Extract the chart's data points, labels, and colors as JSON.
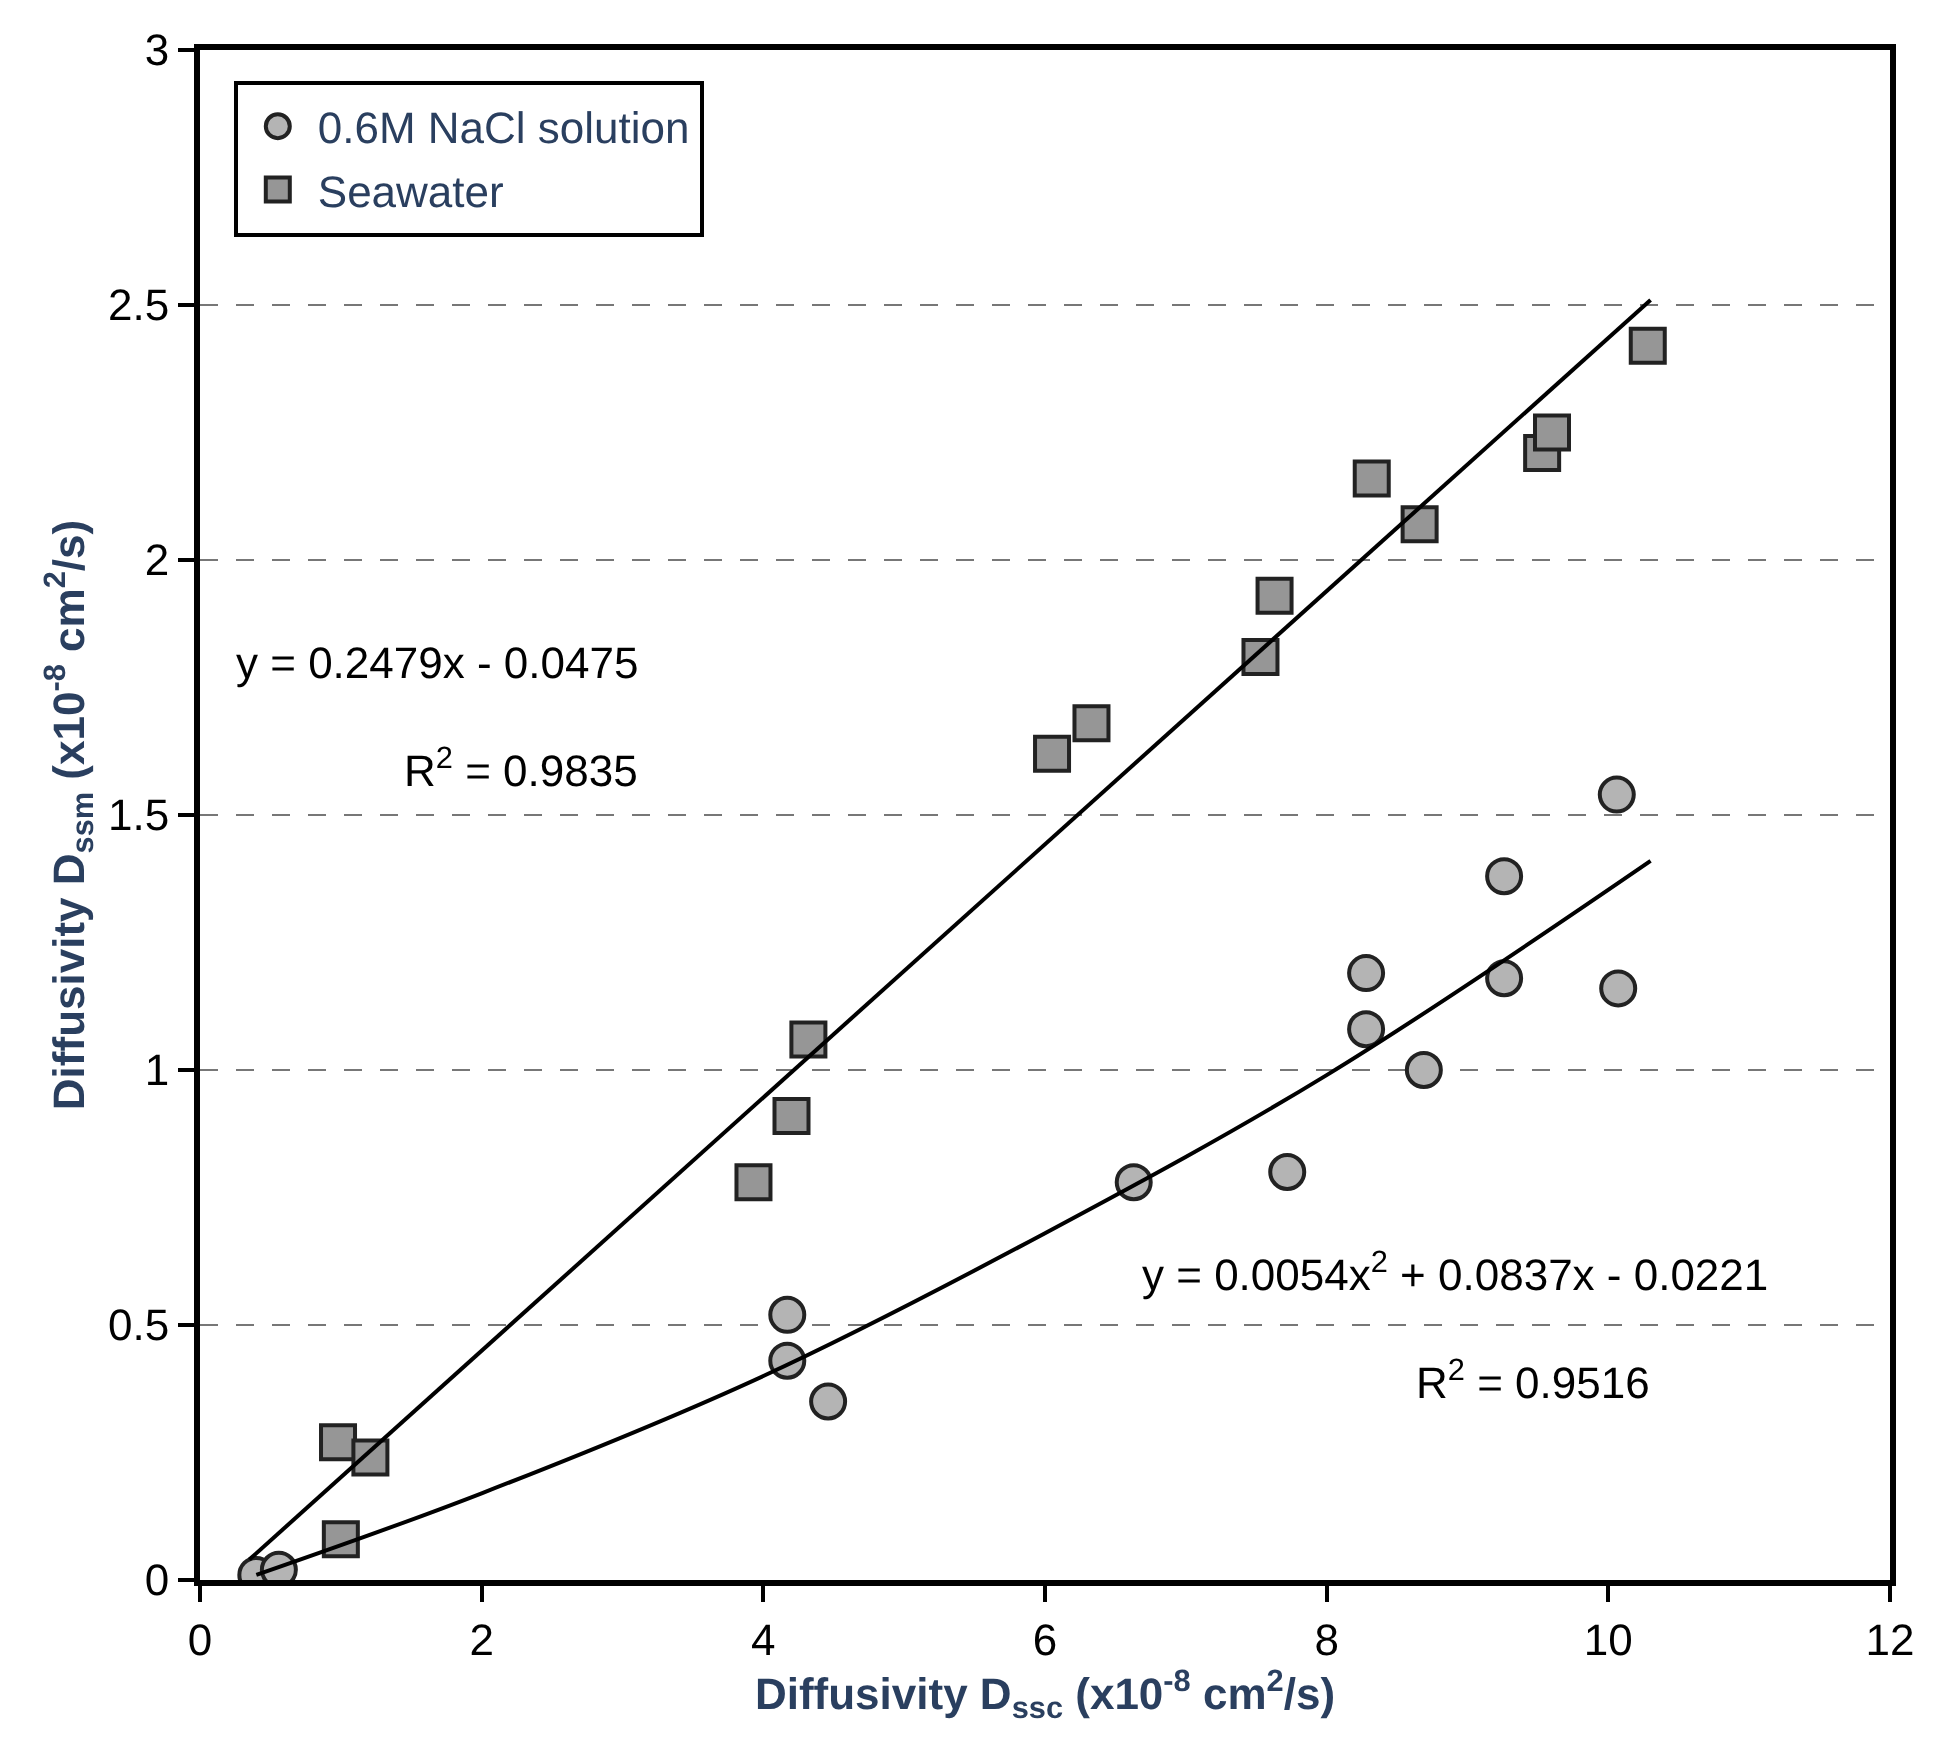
{
  "chart_data": {
    "type": "scatter",
    "xlabel": "Diffusivity D$_{ssc}$ (x10$^{-8}$ cm$^{2}$/s)",
    "ylabel": "Diffusivity D$_{ssm}$ (x10$^{-8}$ cm$^{2}$/s)",
    "xlim": [
      0,
      12
    ],
    "xticks": [
      0,
      2,
      4,
      6,
      8,
      10,
      12
    ],
    "ylim": [
      0,
      3
    ],
    "yticks": [
      0,
      0.5,
      1,
      1.5,
      2,
      2.5,
      3
    ],
    "grid": "y",
    "legend": "top left",
    "annotations": [
      "y = 0.2479x - 0.0475",
      "R$^{2}$ = 0.9835",
      "y = 0.0054x$^{2}$ + 0.0837x - 0.0221",
      "R$^{2}$ = 0.9516"
    ],
    "series": [
      {
        "name": "0.6M NaCl solution",
        "marker": "circle",
        "color": "#b4b4b4",
        "x": [
          0.4,
          0.56,
          4.17,
          4.17,
          4.46,
          6.63,
          7.72,
          8.28,
          8.28,
          8.69,
          9.26,
          9.26,
          10.06,
          10.07
        ],
        "values": [
          0.01,
          0.02,
          0.52,
          0.43,
          0.35,
          0.78,
          0.8,
          1.19,
          1.08,
          1.0,
          1.38,
          1.18,
          1.54,
          1.16
        ]
      },
      {
        "name": "Seawater",
        "marker": "square",
        "color": "#969696",
        "x": [
          1.0,
          0.98,
          1.21,
          3.93,
          4.2,
          4.32,
          6.05,
          6.33,
          7.53,
          7.63,
          8.32,
          8.66,
          9.53,
          9.6,
          10.28
        ],
        "values": [
          0.08,
          0.27,
          0.24,
          0.78,
          0.91,
          1.06,
          1.62,
          1.68,
          1.81,
          1.93,
          2.16,
          2.07,
          2.21,
          2.25,
          2.42
        ]
      },
      {
        "type": "line",
        "color": "#000000",
        "line_style": "solid",
        "x": [
          0.35,
          10.3
        ],
        "values": [
          0.04,
          2.51
        ]
      },
      {
        "type": "line",
        "color": "#000000",
        "line_style": "solid",
        "x": [
          0.4,
          2,
          4,
          6,
          8,
          10.3
        ],
        "values": [
          0.01,
          0.17,
          0.4,
          0.68,
          0.99,
          1.41
        ]
      }
    ]
  }
}
